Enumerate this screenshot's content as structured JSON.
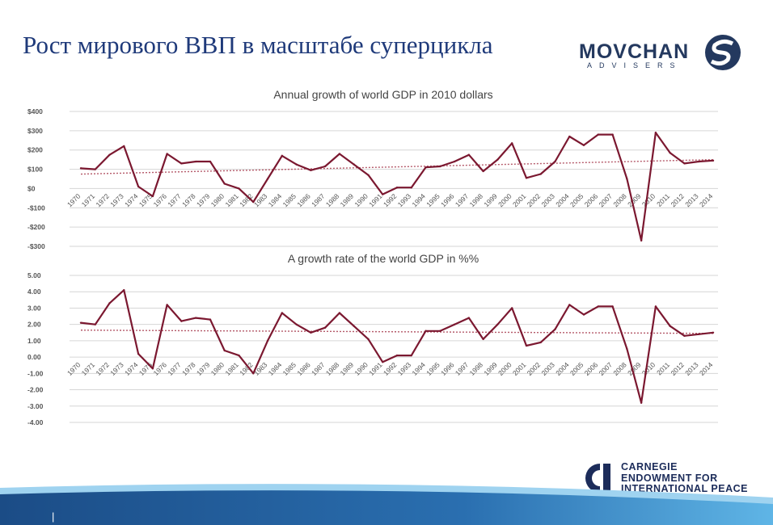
{
  "slide": {
    "title": "Рост мирового ВВП в масштабе суперцикла",
    "page_mark": "|"
  },
  "brand": {
    "name": "MOVCHAN",
    "subtitle": "ADVISERS",
    "color": "#24395f"
  },
  "carnegie": {
    "text": "CARNEGIE\nENDOWMENT FOR\nINTERNATIONAL PEACE",
    "color": "#1c2c5a"
  },
  "colors": {
    "series": "#7b1830",
    "trend": "#b55a6a",
    "grid": "#d6d6d6",
    "title": "#1f3a7a",
    "axis_text": "#555555"
  },
  "chart_data": [
    {
      "type": "line",
      "title": "Annual growth of world GDP in 2010 dollars",
      "x": [
        "1970",
        "1971",
        "1972",
        "1973",
        "1974",
        "1975",
        "1976",
        "1977",
        "1978",
        "1979",
        "1980",
        "1981",
        "1982",
        "1983",
        "1984",
        "1985",
        "1986",
        "1987",
        "1988",
        "1989",
        "1990",
        "1991",
        "1992",
        "1993",
        "1994",
        "1995",
        "1996",
        "1997",
        "1998",
        "1999",
        "2000",
        "2001",
        "2002",
        "2003",
        "2004",
        "2005",
        "2006",
        "2007",
        "2008",
        "2009",
        "2010",
        "2011",
        "2012",
        "2013",
        "2014"
      ],
      "ylim": [
        -300,
        400
      ],
      "yticks": [
        400,
        300,
        200,
        100,
        0,
        -100,
        -200,
        -300
      ],
      "ytick_labels": [
        "$400",
        "$300",
        "$200",
        "$100",
        "$0",
        "-$100",
        "-$200",
        "-$300"
      ],
      "series": [
        {
          "values": [
            105,
            100,
            175,
            220,
            10,
            -40,
            180,
            130,
            140,
            140,
            25,
            0,
            -70,
            50,
            170,
            125,
            95,
            115,
            180,
            125,
            70,
            -30,
            5,
            5,
            110,
            115,
            140,
            175,
            90,
            150,
            235,
            55,
            75,
            140,
            270,
            225,
            280,
            280,
            50,
            -270,
            290,
            185,
            130,
            140,
            145
          ]
        }
      ],
      "trendline": [
        75,
        150
      ],
      "grid": true
    },
    {
      "type": "line",
      "title": "A growth rate of the world GDP in %%",
      "x": [
        "1970",
        "1971",
        "1972",
        "1973",
        "1974",
        "1975",
        "1976",
        "1977",
        "1978",
        "1979",
        "1980",
        "1981",
        "1982",
        "1983",
        "1984",
        "1985",
        "1986",
        "1987",
        "1988",
        "1989",
        "1990",
        "1991",
        "1992",
        "1993",
        "1994",
        "1995",
        "1996",
        "1997",
        "1998",
        "1999",
        "2000",
        "2001",
        "2002",
        "2003",
        "2004",
        "2005",
        "2006",
        "2007",
        "2008",
        "2009",
        "2010",
        "2011",
        "2012",
        "2013",
        "2014"
      ],
      "ylim": [
        -4,
        5
      ],
      "yticks": [
        5,
        4,
        3,
        2,
        1,
        0,
        -1,
        -2,
        -3,
        -4
      ],
      "ytick_labels": [
        "5.00",
        "4.00",
        "3.00",
        "2.00",
        "1.00",
        "0.00",
        "-1.00",
        "-2.00",
        "-3.00",
        "-4.00"
      ],
      "series": [
        {
          "values": [
            2.1,
            2.0,
            3.3,
            4.1,
            0.2,
            -0.7,
            3.2,
            2.2,
            2.4,
            2.3,
            0.4,
            0.1,
            -1.0,
            1.0,
            2.7,
            2.0,
            1.5,
            1.8,
            2.7,
            1.9,
            1.1,
            -0.3,
            0.1,
            0.1,
            1.6,
            1.6,
            2.0,
            2.4,
            1.1,
            2.0,
            3.0,
            0.7,
            0.9,
            1.7,
            3.2,
            2.6,
            3.1,
            3.1,
            0.5,
            -2.8,
            3.1,
            1.9,
            1.3,
            1.4,
            1.5
          ]
        }
      ],
      "trendline": [
        1.65,
        1.45
      ],
      "grid": true
    }
  ]
}
